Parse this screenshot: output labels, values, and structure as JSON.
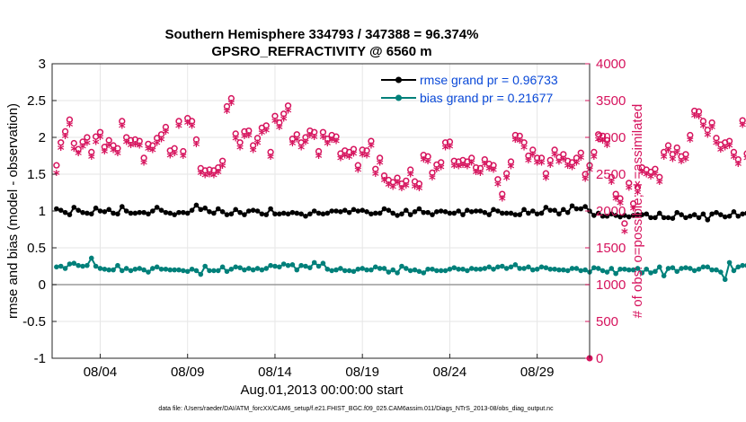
{
  "chart_data": {
    "type": "line",
    "title": "Southern Hemisphere 334793 / 347388 = 96.374%",
    "subtitle": "GPSRO_REFRACTIVITY @ 6560 m",
    "xlabel": "Aug.01,2013 00:00:00 start",
    "ylabel_left": "rmse and bias (model - observation)",
    "ylabel_right": "# of obs: o=possible; ∗=assimilated",
    "footnote": "data file: /Users/raeder/DAI/ATM_forcXX/CAM6_setup/f.e21.FHIST_BGC.f09_025.CAM6assim.011/Diags_NTrS_2013-08/obs_diag_output.nc",
    "xlim_days": [
      1.25,
      32.0
    ],
    "x_ticks": [
      {
        "day": 4,
        "label": "08/04"
      },
      {
        "day": 9,
        "label": "08/09"
      },
      {
        "day": 14,
        "label": "08/14"
      },
      {
        "day": 19,
        "label": "08/19"
      },
      {
        "day": 24,
        "label": "08/24"
      },
      {
        "day": 29,
        "label": "08/29"
      }
    ],
    "ylim_left": [
      -1,
      3
    ],
    "yticks_left": [
      "-1",
      "-0.5",
      "0",
      "0.5",
      "1",
      "1.5",
      "2",
      "2.5",
      "3"
    ],
    "ylim_right": [
      0,
      4000
    ],
    "yticks_right": [
      "0",
      "500",
      "1000",
      "1500",
      "2000",
      "2500",
      "3000",
      "3500",
      "4000"
    ],
    "legend": [
      {
        "label": "rmse grand pr = 0.96733",
        "color": "#000000"
      },
      {
        "label": "bias grand pr = 0.21677",
        "color": "#00807a"
      }
    ],
    "colors": {
      "rmse": "#000000",
      "bias": "#00807a",
      "obs": "#d6135d",
      "zero_line": "#9a9a9a",
      "grid": "#e6e6e6"
    },
    "time_step_days": 0.25,
    "time_start_day": 1.5,
    "rmse": [
      1.03,
      1.01,
      0.98,
      0.95,
      1.05,
      1.01,
      0.98,
      0.97,
      0.96,
      1.04,
      1.0,
      0.99,
      1.02,
      0.97,
      0.96,
      1.06,
      1.0,
      0.97,
      0.97,
      0.98,
      0.98,
      0.96,
      1.0,
      1.05,
      1.01,
      0.98,
      0.97,
      0.95,
      0.98,
      0.98,
      0.97,
      1.01,
      1.08,
      1.02,
      1.04,
      0.99,
      0.97,
      1.03,
      0.99,
      0.95,
      0.96,
      1.02,
      0.98,
      0.95,
      1.0,
      1.01,
      1.0,
      0.96,
      0.95,
      1.03,
      0.96,
      0.96,
      0.97,
      0.96,
      0.98,
      0.97,
      0.96,
      0.93,
      0.96,
      1.0,
      0.97,
      0.96,
      0.97,
      1.0,
      1.0,
      0.99,
      1.01,
      0.98,
      1.02,
      1.0,
      1.01,
      0.99,
      0.96,
      0.97,
      0.97,
      1.03,
      1.01,
      0.97,
      0.94,
      0.96,
      1.01,
      0.95,
      0.99,
      1.03,
      0.98,
      0.98,
      0.95,
      0.99,
      1.0,
      0.99,
      0.97,
      0.97,
      1.0,
      0.95,
      1.01,
      0.99,
      1.0,
      1.0,
      0.98,
      0.95,
      1.02,
      1.0,
      0.97,
      0.97,
      0.97,
      0.95,
      0.95,
      1.02,
      0.97,
      1.0,
      0.96,
      0.97,
      1.05,
      1.01,
      1.01,
      0.96,
      1.02,
      0.98,
      1.07,
      1.03,
      1.03,
      1.06,
      1.0,
      0.94,
      0.97,
      0.93,
      0.93,
      0.96,
      0.94,
      0.92,
      0.94,
      0.92,
      0.94,
      0.95,
      0.95,
      0.96,
      0.91,
      0.91,
      0.97,
      0.91,
      0.91,
      0.9,
      0.98,
      0.95,
      0.91,
      0.93,
      0.95,
      0.91,
      0.96,
      0.88,
      0.96,
      0.98,
      0.95,
      0.92,
      0.93,
      0.99,
      0.93,
      0.96,
      0.97,
      0.97,
      0.92,
      0.95,
      0.92,
      0.93,
      0.95,
      0.95,
      0.94,
      0.95,
      0.98,
      1.02,
      0.97,
      1.0,
      0.95,
      1.02,
      1.01,
      1.0,
      0.93,
      1.01,
      0.97,
      1.01,
      1.04,
      1.0,
      1.0,
      0.99,
      0.96,
      0.96,
      0.95,
      0.96,
      0.98,
      0.97,
      0.95,
      0.94,
      0.97,
      0.99,
      1.01,
      0.94,
      0.96,
      0.99,
      0.96,
      1.05,
      0.99,
      0.97,
      0.96,
      1.01,
      0.97,
      0.95,
      0.95,
      0.95,
      0.97,
      0.95,
      0.96,
      1.01,
      0.98,
      0.97,
      0.98,
      0.98,
      0.93,
      0.96,
      0.97,
      0.95,
      0.95,
      0.95,
      0.94,
      0.96,
      0.96,
      0.97,
      0.96,
      0.97,
      0.99,
      0.96,
      0.99,
      0.95,
      0.96,
      0.96,
      0.96,
      0.97,
      0.96,
      0.98
    ],
    "bias": [
      0.24,
      0.25,
      0.22,
      0.28,
      0.29,
      0.26,
      0.25,
      0.26,
      0.36,
      0.25,
      0.22,
      0.21,
      0.2,
      0.2,
      0.26,
      0.19,
      0.22,
      0.19,
      0.21,
      0.22,
      0.2,
      0.17,
      0.22,
      0.24,
      0.21,
      0.21,
      0.2,
      0.2,
      0.2,
      0.19,
      0.18,
      0.21,
      0.19,
      0.14,
      0.25,
      0.19,
      0.19,
      0.19,
      0.24,
      0.18,
      0.21,
      0.24,
      0.23,
      0.2,
      0.22,
      0.2,
      0.22,
      0.2,
      0.22,
      0.26,
      0.25,
      0.24,
      0.28,
      0.26,
      0.27,
      0.2,
      0.26,
      0.25,
      0.23,
      0.3,
      0.25,
      0.29,
      0.21,
      0.19,
      0.2,
      0.22,
      0.19,
      0.19,
      0.18,
      0.21,
      0.22,
      0.2,
      0.2,
      0.24,
      0.22,
      0.22,
      0.17,
      0.2,
      0.16,
      0.25,
      0.22,
      0.19,
      0.2,
      0.18,
      0.16,
      0.21,
      0.21,
      0.19,
      0.19,
      0.19,
      0.21,
      0.23,
      0.21,
      0.21,
      0.19,
      0.22,
      0.21,
      0.21,
      0.22,
      0.24,
      0.21,
      0.24,
      0.25,
      0.22,
      0.24,
      0.27,
      0.22,
      0.22,
      0.24,
      0.2,
      0.21,
      0.24,
      0.23,
      0.21,
      0.21,
      0.2,
      0.2,
      0.19,
      0.22,
      0.22,
      0.19,
      0.2,
      0.17,
      0.23,
      0.22,
      0.19,
      0.17,
      0.22,
      0.15,
      0.21,
      0.21,
      0.2,
      0.2,
      0.22,
      0.16,
      0.21,
      0.16,
      0.18,
      0.24,
      0.12,
      0.22,
      0.23,
      0.18,
      0.22,
      0.23,
      0.22,
      0.19,
      0.21,
      0.24,
      0.24,
      0.2,
      0.2,
      0.17,
      0.07,
      0.3,
      0.19,
      0.24,
      0.26,
      0.26,
      0.24,
      0.23,
      0.2,
      0.21,
      0.21,
      0.19,
      0.22,
      0.25,
      0.23,
      0.24,
      0.21,
      0.26,
      0.22,
      0.2,
      0.24,
      0.22,
      0.24,
      0.22,
      0.24,
      0.23,
      0.21,
      0.2,
      0.21,
      0.19,
      0.23,
      0.22,
      0.24,
      0.23,
      0.21,
      0.23,
      0.24,
      0.22,
      0.21,
      0.22,
      0.19,
      0.22,
      0.24,
      0.23,
      0.23,
      0.22,
      0.2,
      0.22,
      0.23,
      0.26,
      0.24,
      0.21,
      0.24,
      0.22,
      0.19,
      0.23,
      0.21,
      0.23,
      0.24,
      0.21,
      0.23,
      0.21,
      0.26,
      0.22,
      0.2,
      0.21,
      0.18,
      0.21,
      0.13,
      0.21,
      0.24,
      0.21,
      0.26,
      0.21,
      0.23,
      0.23,
      0.24,
      0.28,
      0.23,
      0.24,
      0.21,
      0.23,
      0.22,
      0.21,
      0.27,
      0.22,
      0.22,
      0.28
    ],
    "obs_possible": [
      2620,
      2930,
      3080,
      3240,
      2920,
      2840,
      2940,
      3000,
      2800,
      3010,
      3070,
      2870,
      2960,
      2890,
      2850,
      3220,
      3000,
      2960,
      2970,
      2950,
      2720,
      2910,
      2890,
      2990,
      3040,
      3140,
      2820,
      2850,
      3220,
      2810,
      3260,
      3220,
      2970,
      2580,
      2550,
      2560,
      2550,
      2590,
      2680,
      3420,
      3530,
      3050,
      2930,
      3080,
      3090,
      2890,
      2990,
      3130,
      3160,
      2800,
      3290,
      3200,
      3320,
      3430,
      2980,
      3040,
      2930,
      3000,
      3090,
      3070,
      2810,
      3070,
      2980,
      3030,
      3010,
      2780,
      2820,
      2800,
      2840,
      2620,
      2830,
      2820,
      2950,
      2570,
      2720,
      2480,
      2420,
      2390,
      2450,
      2370,
      2410,
      2560,
      2400,
      2370,
      2760,
      2740,
      2520,
      2630,
      2660,
      2930,
      2940,
      2680,
      2670,
      2690,
      2670,
      2720,
      2590,
      2580,
      2700,
      2640,
      2620,
      2430,
      2230,
      2510,
      2670,
      3030,
      3020,
      2930,
      2750,
      2830,
      2720,
      2720,
      2510,
      2690,
      2830,
      2730,
      2770,
      2680,
      2660,
      2720,
      2790,
      2500,
      2620,
      2800,
      3040,
      3020,
      2960,
      2460,
      2230,
      2170,
      1830,
      2380,
      2100,
      2320,
      2590,
      2560,
      2530,
      2570,
      2460,
      2800,
      2890,
      2770,
      2860,
      2740,
      2770,
      3030,
      3360,
      3350,
      3220,
      3100,
      3200,
      2990,
      2900,
      2930,
      2950,
      2800,
      2700,
      3230,
      2780,
      3000,
      3310,
      3040,
      3300,
      3070,
      3000,
      2910,
      3170,
      2950,
      2760,
      2840,
      3100,
      2870,
      2880,
      2600,
      2530,
      2950,
      3010,
      2680,
      2400,
      2620,
      2500,
      2400,
      2750,
      2810,
      2890,
      2560,
      2540,
      2910,
      2450,
      2710,
      2980,
      2670,
      2880,
      2940,
      2740,
      2820,
      2870,
      2990,
      2640,
      2730,
      2610,
      3020,
      2960,
      2950,
      2840,
      2770,
      2700,
      2940,
      2970,
      2970,
      2780,
      2900,
      2860,
      2930,
      2830,
      2980,
      2740,
      2970,
      3060,
      3000,
      3030
    ],
    "obs_assimilated": [
      2500,
      2840,
      3000,
      3160,
      2830,
      2770,
      2860,
      2910,
      2720,
      2920,
      2990,
      2790,
      2880,
      2810,
      2770,
      3140,
      2920,
      2880,
      2890,
      2870,
      2640,
      2830,
      2810,
      2910,
      2960,
      3060,
      2740,
      2770,
      3140,
      2730,
      3180,
      3140,
      2890,
      2500,
      2470,
      2480,
      2470,
      2510,
      2600,
      3340,
      3450,
      2970,
      2850,
      3000,
      3010,
      2810,
      2910,
      3050,
      3080,
      2720,
      3210,
      3120,
      3240,
      3350,
      2900,
      2960,
      2850,
      2920,
      3010,
      2990,
      2730,
      2990,
      2900,
      2950,
      2930,
      2700,
      2740,
      2720,
      2760,
      2540,
      2750,
      2740,
      2870,
      2490,
      2640,
      2400,
      2340,
      2310,
      2370,
      2290,
      2330,
      2480,
      2320,
      2290,
      2680,
      2660,
      2440,
      2550,
      2580,
      2850,
      2860,
      2600,
      2590,
      2610,
      2590,
      2640,
      2510,
      2500,
      2620,
      2560,
      2540,
      2350,
      2150,
      2430,
      2590,
      2950,
      2940,
      2850,
      2670,
      2750,
      2640,
      2640,
      2430,
      2610,
      2750,
      2650,
      2690,
      2600,
      2580,
      2640,
      2710,
      2420,
      2540,
      2720,
      2960,
      2940,
      2880,
      2380,
      2150,
      2090,
      1710,
      2300,
      2020,
      2240,
      2510,
      2480,
      2450,
      2490,
      2380,
      2720,
      2810,
      2690,
      2780,
      2660,
      2690,
      2950,
      3280,
      3270,
      3140,
      3020,
      3120,
      2910,
      2820,
      2850,
      2870,
      2720,
      2620,
      3150,
      2700,
      2920,
      3230,
      2960,
      3220,
      2990,
      2920,
      2830,
      3090,
      2870,
      2680,
      2760,
      3020,
      2790,
      2800,
      2520,
      2450,
      2870,
      2930,
      2600,
      2320,
      2540,
      2420,
      2320,
      2670,
      2730,
      2810,
      2480,
      2460,
      2830,
      2370,
      2630,
      2900,
      2590,
      2800,
      2860,
      2660,
      2740,
      2790,
      2910,
      2560,
      2650,
      2530,
      2940,
      2880,
      2870,
      2760,
      2690,
      2620,
      2860,
      2890,
      2890,
      2700,
      2820,
      2780,
      2850,
      2750,
      2900,
      2660,
      2890,
      2980,
      2920,
      2950
    ]
  }
}
